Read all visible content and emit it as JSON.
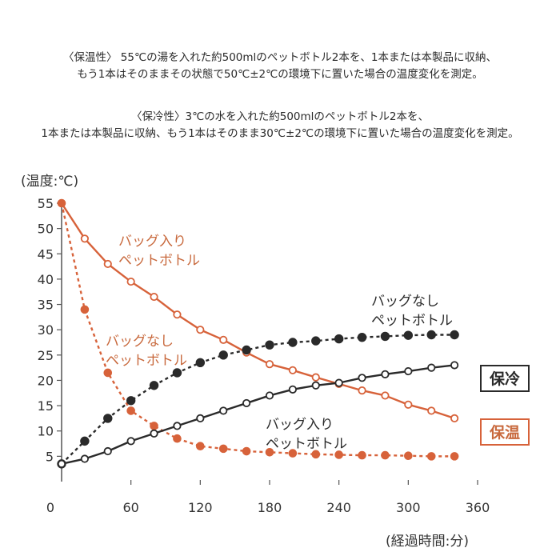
{
  "notes": {
    "keep_warm_line1": "〈保温性〉 55℃の湯を入れた約500mlのペットボトル2本を、1本または本製品に収納、",
    "keep_warm_line2": "もう1本はそのままその状態で50℃±2℃の環境下に置いた場合の温度変化を測定。",
    "keep_cold_line1": "〈保冷性〉3℃の水を入れた約500mlのペットボトル2本を、",
    "keep_cold_line2": "1本または本製品に収納、もう1本はそのまま30℃±2℃の環境下に置いた場合の温度変化を測定。"
  },
  "colors": {
    "orange": "#d7623a",
    "orange_text": "#c8693d",
    "dark": "#2a2a2a",
    "axis": "#555555"
  },
  "chart_data": {
    "type": "line",
    "ylabel": "(温度:℃)",
    "xlabel": "(経過時間:分)",
    "xlim": [
      0,
      360
    ],
    "ylim": [
      0,
      55
    ],
    "xticks": [
      "0",
      "60",
      "120",
      "180",
      "240",
      "300",
      "360"
    ],
    "yticks": [
      "5",
      "10",
      "15",
      "20",
      "25",
      "30",
      "35",
      "40",
      "45",
      "50",
      "55"
    ],
    "x": [
      0,
      20,
      40,
      60,
      80,
      100,
      120,
      140,
      160,
      180,
      200,
      220,
      240,
      260,
      280,
      300,
      320,
      340
    ],
    "series": [
      {
        "name": "保温 バッグ入りペットボトル",
        "style": "solid-orange-open",
        "values": [
          55,
          48,
          43,
          39.5,
          36.5,
          33,
          30,
          28,
          25.5,
          23.2,
          22,
          20.6,
          19.3,
          18,
          17,
          15.2,
          14,
          12.5
        ]
      },
      {
        "name": "保温 バッグなしペットボトル",
        "style": "dashed-orange-filled",
        "values": [
          55,
          34,
          21.5,
          14,
          11,
          8.5,
          7,
          6.5,
          6,
          5.8,
          5.6,
          5.4,
          5.3,
          5.2,
          5.2,
          5.1,
          5.0,
          5.0
        ]
      },
      {
        "name": "保冷 バッグなしペットボトル",
        "style": "dashed-dark",
        "values": [
          3.5,
          8,
          12.5,
          16,
          19,
          21.5,
          23.5,
          25,
          26,
          27,
          27.5,
          27.8,
          28.2,
          28.5,
          28.7,
          28.9,
          29,
          29
        ]
      },
      {
        "name": "保冷 バッグ入りペットボトル",
        "style": "solid-dark",
        "values": [
          3.5,
          4.5,
          6,
          8,
          9.5,
          11,
          12.5,
          14,
          15.5,
          17,
          18.2,
          19,
          19.5,
          20.5,
          21.2,
          21.8,
          22.5,
          23
        ]
      }
    ],
    "annotations": {
      "warm_bag": [
        "バッグ入り",
        "ペットボトル"
      ],
      "warm_nobag": [
        "バッグなし",
        "ペットボトル"
      ],
      "cold_nobag": [
        "バッグなし",
        "ペットボトル"
      ],
      "cold_bag": [
        "バッグ入り",
        "ペットボトル"
      ]
    },
    "badges": {
      "cold": "保冷",
      "warm": "保温"
    }
  }
}
